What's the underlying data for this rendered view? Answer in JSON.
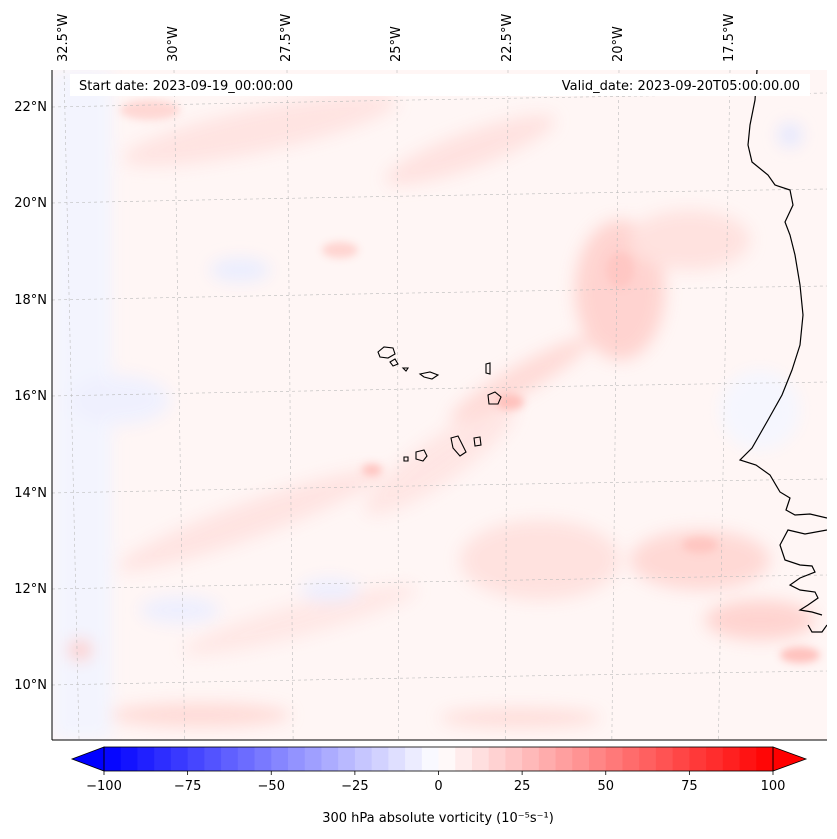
{
  "map": {
    "start_date": "Start date: 2023-09-19_00:00:00",
    "valid_date": "Valid_date: 2023-09-20T05:00:00.00",
    "lon_labels": [
      "32.5°W",
      "30°W",
      "27.5°W",
      "25°W",
      "22.5°W",
      "20°W",
      "17.5°W"
    ],
    "lat_labels": [
      "22°N",
      "20°N",
      "18°N",
      "16°N",
      "14°N",
      "12°N",
      "10°N"
    ],
    "field": "300 hPa absolute vorticity",
    "units": "(10⁻⁵s⁻¹)",
    "colorbar": {
      "min": -100,
      "max": 100,
      "extend": "both",
      "colormap": "bwr",
      "tick_labels": [
        "−100",
        "−75",
        "−50",
        "−25",
        "0",
        "25",
        "50",
        "75",
        "100"
      ]
    },
    "colors": {
      "negative": "#0000ff",
      "neutral": "#ffffff",
      "positive": "#ff0000"
    }
  }
}
